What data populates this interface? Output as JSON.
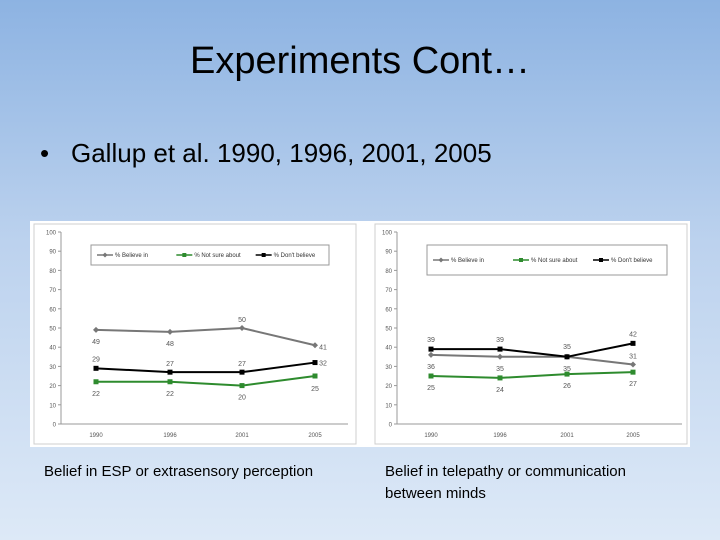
{
  "slide": {
    "title": "Experiments Cont…",
    "bullet_marker": "•",
    "bullet_text": "Gallup et al. 1990, 1996, 2001, 2005",
    "captions": [
      "Belief in ESP or extrasensory perception",
      "Belief in telepathy or communication between minds"
    ]
  },
  "chart_data": [
    {
      "type": "line",
      "title": "Belief in ESP or extrasensory perception",
      "categories": [
        "1990",
        "1996",
        "2001",
        "2005"
      ],
      "ylim": [
        0,
        100
      ],
      "yticks": [
        0,
        10,
        20,
        30,
        40,
        50,
        60,
        70,
        80,
        90,
        100
      ],
      "legend_position": "top",
      "series": [
        {
          "name": "% Believe in",
          "values": [
            49,
            48,
            50,
            41
          ],
          "color": "#777777",
          "marker": "diamond"
        },
        {
          "name": "% Not sure about",
          "values": [
            22,
            22,
            20,
            25
          ],
          "color": "#2e8b2e",
          "marker": "square"
        },
        {
          "name": "% Don't believe",
          "values": [
            29,
            27,
            27,
            32
          ],
          "color": "#000000",
          "marker": "square"
        }
      ],
      "data_labels": [
        {
          "series": 0,
          "labels": [
            "49",
            "48",
            "50",
            "41"
          ]
        },
        {
          "series": 1,
          "labels": [
            "22",
            "22",
            "20",
            "25"
          ]
        },
        {
          "series": 2,
          "labels": [
            "29",
            "27",
            "27",
            "32"
          ]
        }
      ]
    },
    {
      "type": "line",
      "title": "Belief in telepathy or communication between minds",
      "categories": [
        "1990",
        "1996",
        "2001",
        "2005"
      ],
      "ylim": [
        0,
        100
      ],
      "yticks": [
        0,
        10,
        20,
        30,
        40,
        50,
        60,
        70,
        80,
        90,
        100
      ],
      "legend_position": "top",
      "series": [
        {
          "name": "% Believe in",
          "values": [
            36,
            35,
            35,
            31
          ],
          "color": "#777777",
          "marker": "diamond"
        },
        {
          "name": "% Not sure about",
          "values": [
            25,
            24,
            26,
            27
          ],
          "color": "#2e8b2e",
          "marker": "square"
        },
        {
          "name": "% Don't believe",
          "values": [
            39,
            39,
            35,
            42
          ],
          "color": "#000000",
          "marker": "square"
        }
      ],
      "data_labels": [
        {
          "series": 0,
          "labels": [
            "36",
            "35",
            "35",
            "31"
          ]
        },
        {
          "series": 1,
          "labels": [
            "25",
            "24",
            "26",
            "27"
          ]
        },
        {
          "series": 2,
          "labels": [
            "39",
            "39",
            "35",
            "42"
          ]
        }
      ]
    }
  ]
}
